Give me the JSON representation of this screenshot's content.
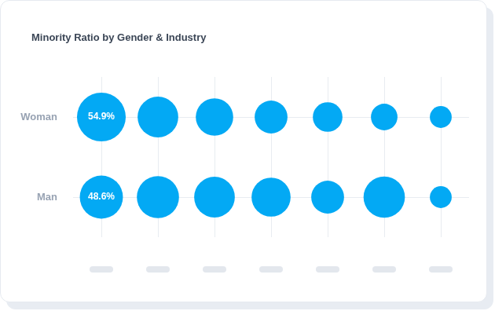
{
  "chart_data": {
    "type": "bubble",
    "title": "Minority Ratio by Gender & Industry",
    "categories": [
      null,
      null,
      null,
      null,
      null,
      null,
      null
    ],
    "series": [
      {
        "name": "Woman",
        "color": "#03a9f4",
        "values": [
          54.9,
          45.8,
          42.2,
          37.0,
          33.4,
          29.9,
          24.6
        ],
        "value_labels": [
          "54.9%",
          null,
          null,
          null,
          null,
          null,
          null
        ]
      },
      {
        "name": "Man",
        "color": "#03a9f4",
        "values": [
          48.6,
          47.5,
          45.8,
          44.0,
          37.0,
          46.6,
          24.6
        ],
        "value_labels": [
          "48.6%",
          null,
          null,
          null,
          null,
          null,
          null
        ]
      }
    ],
    "data_labels": true,
    "grid": true
  }
}
